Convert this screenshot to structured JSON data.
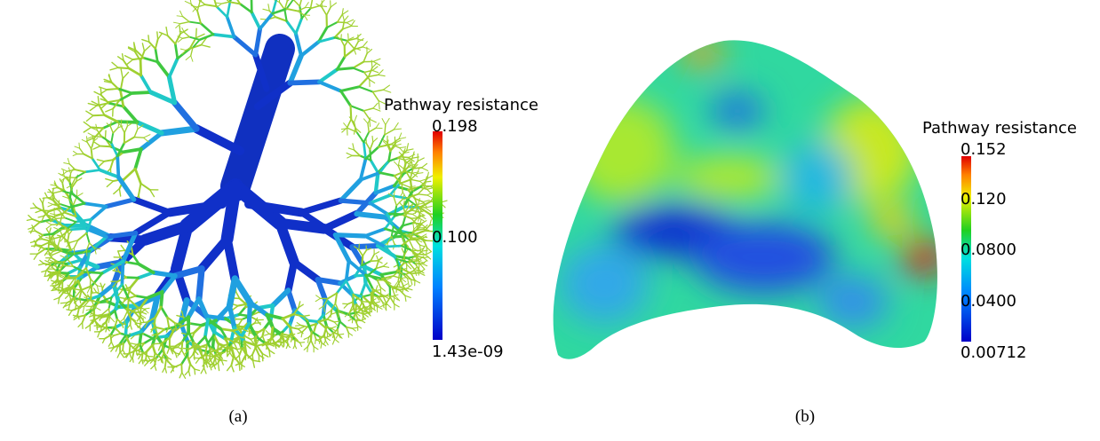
{
  "panels": [
    {
      "caption": "(a)",
      "colorbar": {
        "title": "Pathway resistance",
        "labels": [
          "0.198",
          "0.100",
          "1.43e-09"
        ]
      }
    },
    {
      "caption": "(b)",
      "colorbar": {
        "title": "Pathway resistance",
        "labels": [
          "0.152",
          "0.120",
          "0.0800",
          "0.0400",
          "0.00712"
        ]
      }
    }
  ]
}
